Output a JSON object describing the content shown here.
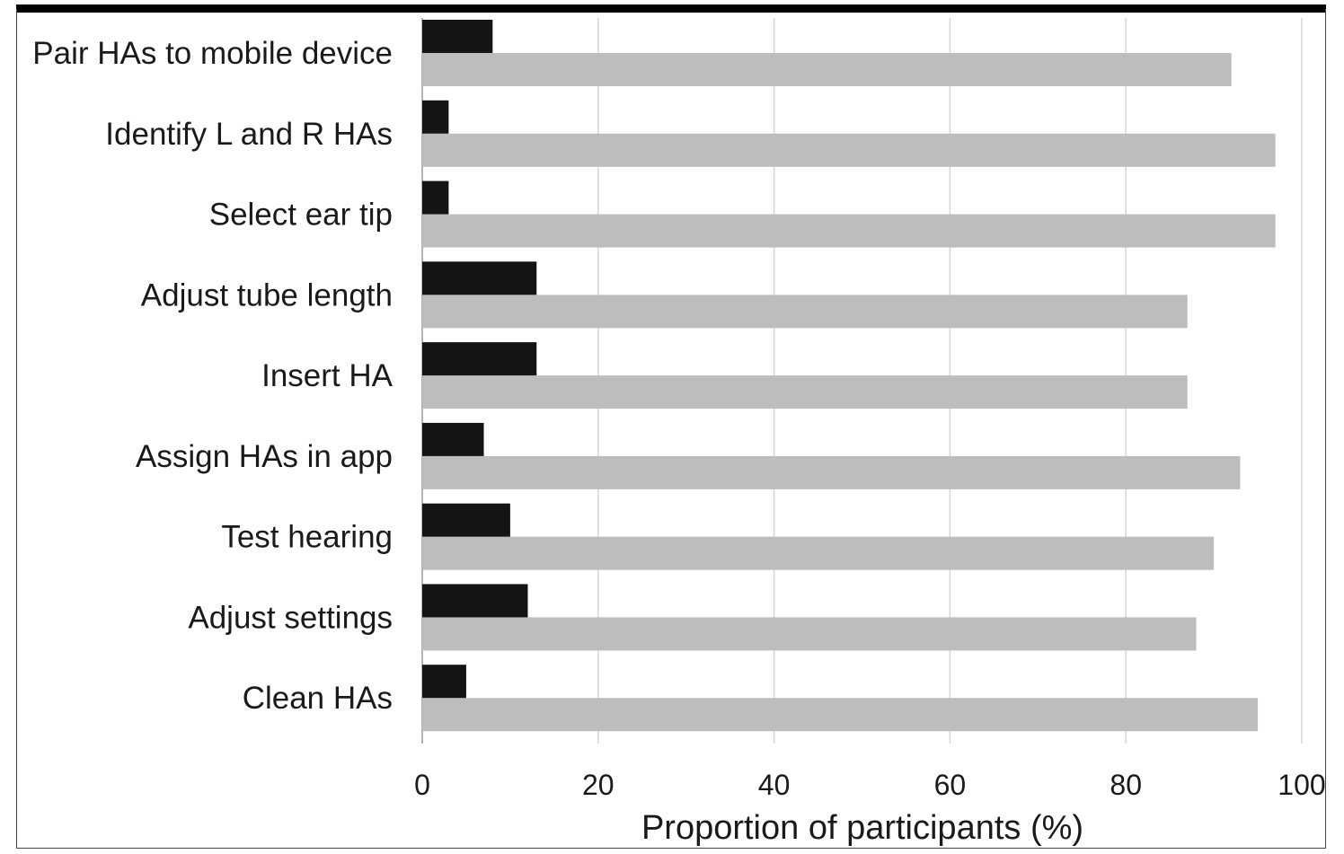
{
  "chart_data": {
    "type": "bar",
    "orientation": "horizontal",
    "categories": [
      "Pair HAs to mobile device",
      "Identify L and R HAs",
      "Select ear tip",
      "Adjust tube length",
      "Insert HA",
      "Assign HAs in app",
      "Test hearing",
      "Adjust settings",
      "Clean HAs"
    ],
    "series": [
      {
        "color": "#141414",
        "values": [
          8,
          3,
          3,
          13,
          13,
          7,
          10,
          12,
          5
        ]
      },
      {
        "color": "#bdbdbd",
        "values": [
          92,
          97,
          97,
          87,
          87,
          93,
          90,
          88,
          95
        ]
      }
    ],
    "title": "",
    "xlabel": "Proportion of participants (%)",
    "ylabel": "",
    "xlim": [
      0,
      100
    ],
    "xticks": [
      "0",
      "20",
      "40",
      "60",
      "80",
      "100"
    ],
    "grid": "vertical",
    "legend": "none"
  }
}
